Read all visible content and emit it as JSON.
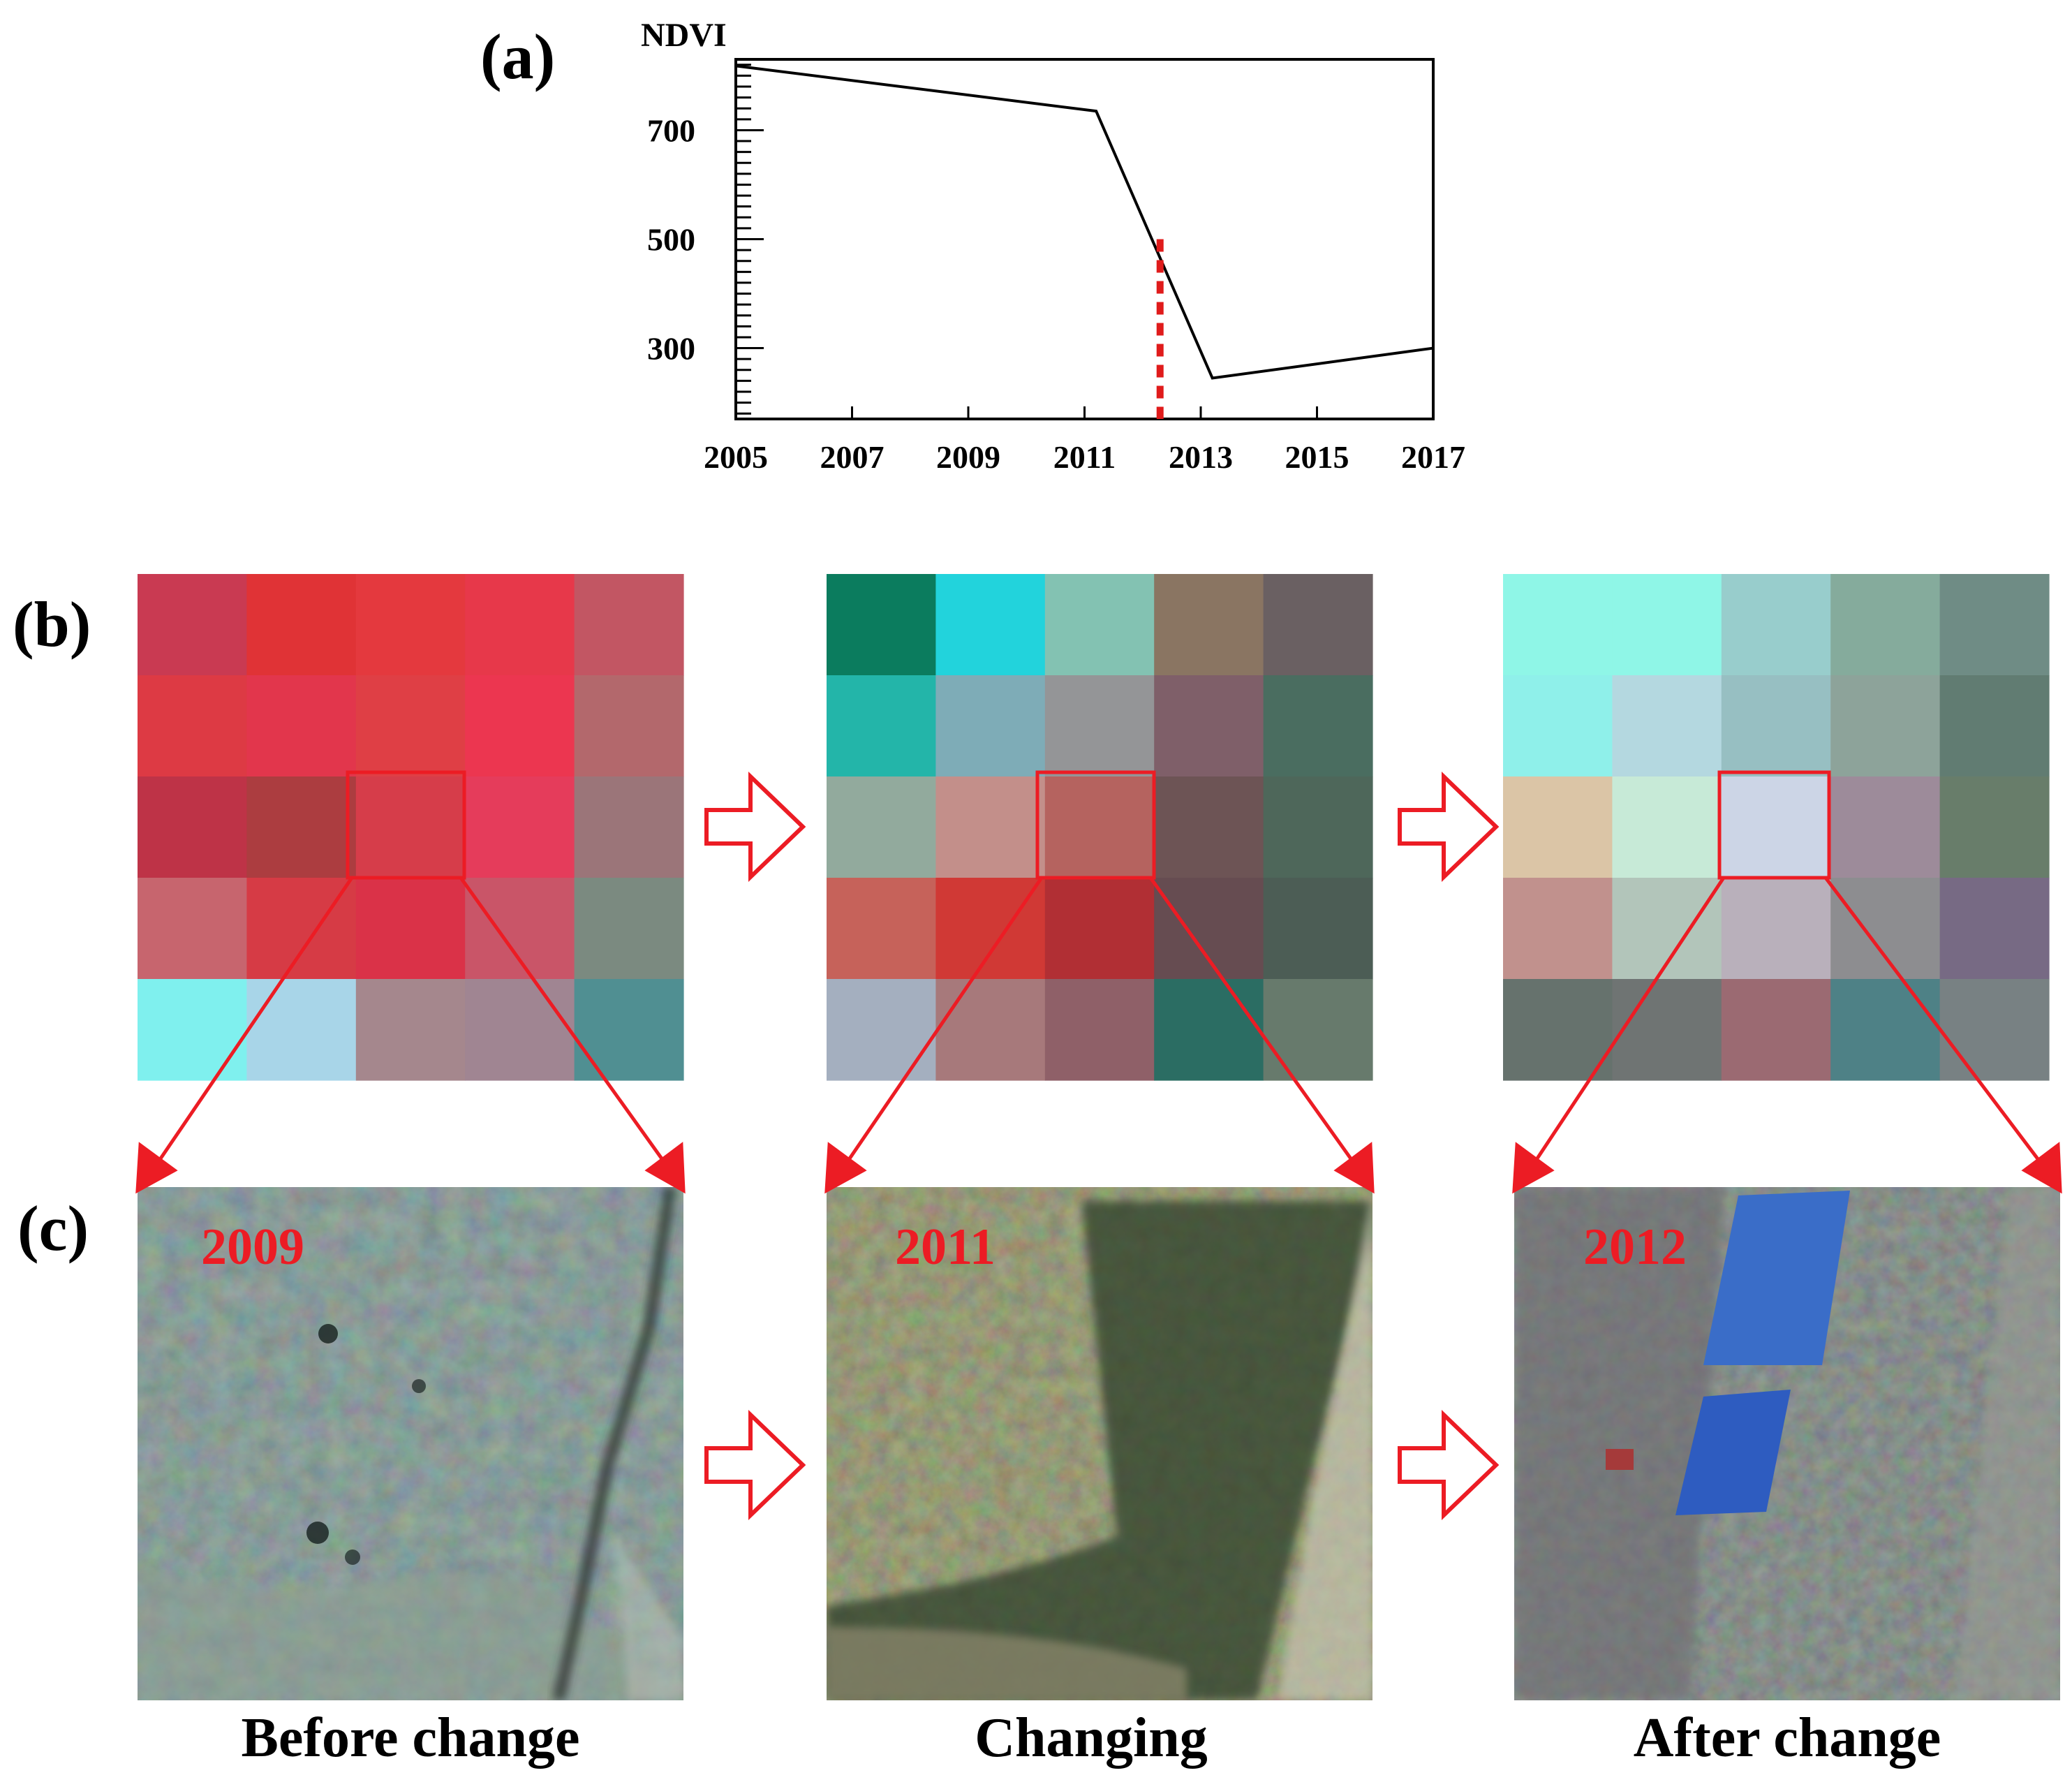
{
  "panel_labels": {
    "a": "(a)",
    "b": "(b)",
    "c": "(c)"
  },
  "chart_data": {
    "type": "line",
    "title": "",
    "xlabel": "",
    "ylabel": "NDVI",
    "x_ticks": [
      "2005",
      "2007",
      "2009",
      "2011",
      "2013",
      "2015",
      "2017"
    ],
    "y_ticks": [
      "300",
      "500",
      "700"
    ],
    "xlim": [
      2005,
      2017
    ],
    "ylim": [
      170,
      830
    ],
    "series": [
      {
        "name": "NDVI",
        "x": [
          2005,
          2011.2,
          2013.2,
          2017
        ],
        "y": [
          818,
          735,
          245,
          300
        ],
        "color": "#000000"
      }
    ],
    "breakpoint": {
      "x": 2012.3,
      "y": 500,
      "color": "#e01b1b",
      "style": "dashed"
    },
    "grid": false
  },
  "pixel_grids": [
    {
      "name": "before",
      "cells": [
        [
          "#c93a52",
          "#e03336",
          "#e4393e",
          "#e7384a",
          "#c25663"
        ],
        [
          "#dd3a44",
          "#e2364c",
          "#df3f45",
          "#ec3650",
          "#b3686c"
        ],
        [
          "#be3347",
          "#ac3d40",
          "#d63d4a",
          "#e53c5b",
          "#9b7579"
        ],
        [
          "#c7656e",
          "#d63b45",
          "#da3248",
          "#c95568",
          "#7b8a80"
        ],
        [
          "#7ff0ee",
          "#a8d5e8",
          "#a5878d",
          "#a08592",
          "#508f92"
        ]
      ]
    },
    {
      "name": "changing",
      "cells": [
        [
          "#0b7c5e",
          "#22d3dc",
          "#83c2b2",
          "#8a7562",
          "#6a6062"
        ],
        [
          "#23b5a9",
          "#7eacb7",
          "#949597",
          "#7f5f69",
          "#4a6d60"
        ],
        [
          "#92aa9d",
          "#c38f8a",
          "#b5635f",
          "#6d5455",
          "#4e675a"
        ],
        [
          "#c6625a",
          "#d03935",
          "#b12f34",
          "#664c51",
          "#4c5d55"
        ],
        [
          "#a4afbf",
          "#a7797b",
          "#8f6068",
          "#2b6d63",
          "#677a6c"
        ]
      ]
    },
    {
      "name": "after",
      "cells": [
        [
          "#8ff6e7",
          "#8ff6e7",
          "#98cdcc",
          "#85ab9c",
          "#6f8c85"
        ],
        [
          "#8ff0ea",
          "#b4d8e0",
          "#97bfc2",
          "#8da39a",
          "#617c72"
        ],
        [
          "#dbc5a6",
          "#c7ead7",
          "#ccd5e6",
          "#9d8b9a",
          "#687d6a"
        ],
        [
          "#c1918d",
          "#b2c5ba",
          "#b9b0bb",
          "#8d8d90",
          "#776a84"
        ],
        [
          "#66726d",
          "#6f7473",
          "#9b6a72",
          "#4e8186",
          "#788183"
        ]
      ]
    }
  ],
  "photos": [
    {
      "name": "before",
      "year": "2009"
    },
    {
      "name": "changing",
      "year": "2011"
    },
    {
      "name": "after",
      "year": "2012"
    }
  ],
  "captions": {
    "before": "Before change",
    "changing": "Changing",
    "after": "After change"
  },
  "colors": {
    "accent_red": "#ec1c24",
    "axis": "#000000"
  }
}
